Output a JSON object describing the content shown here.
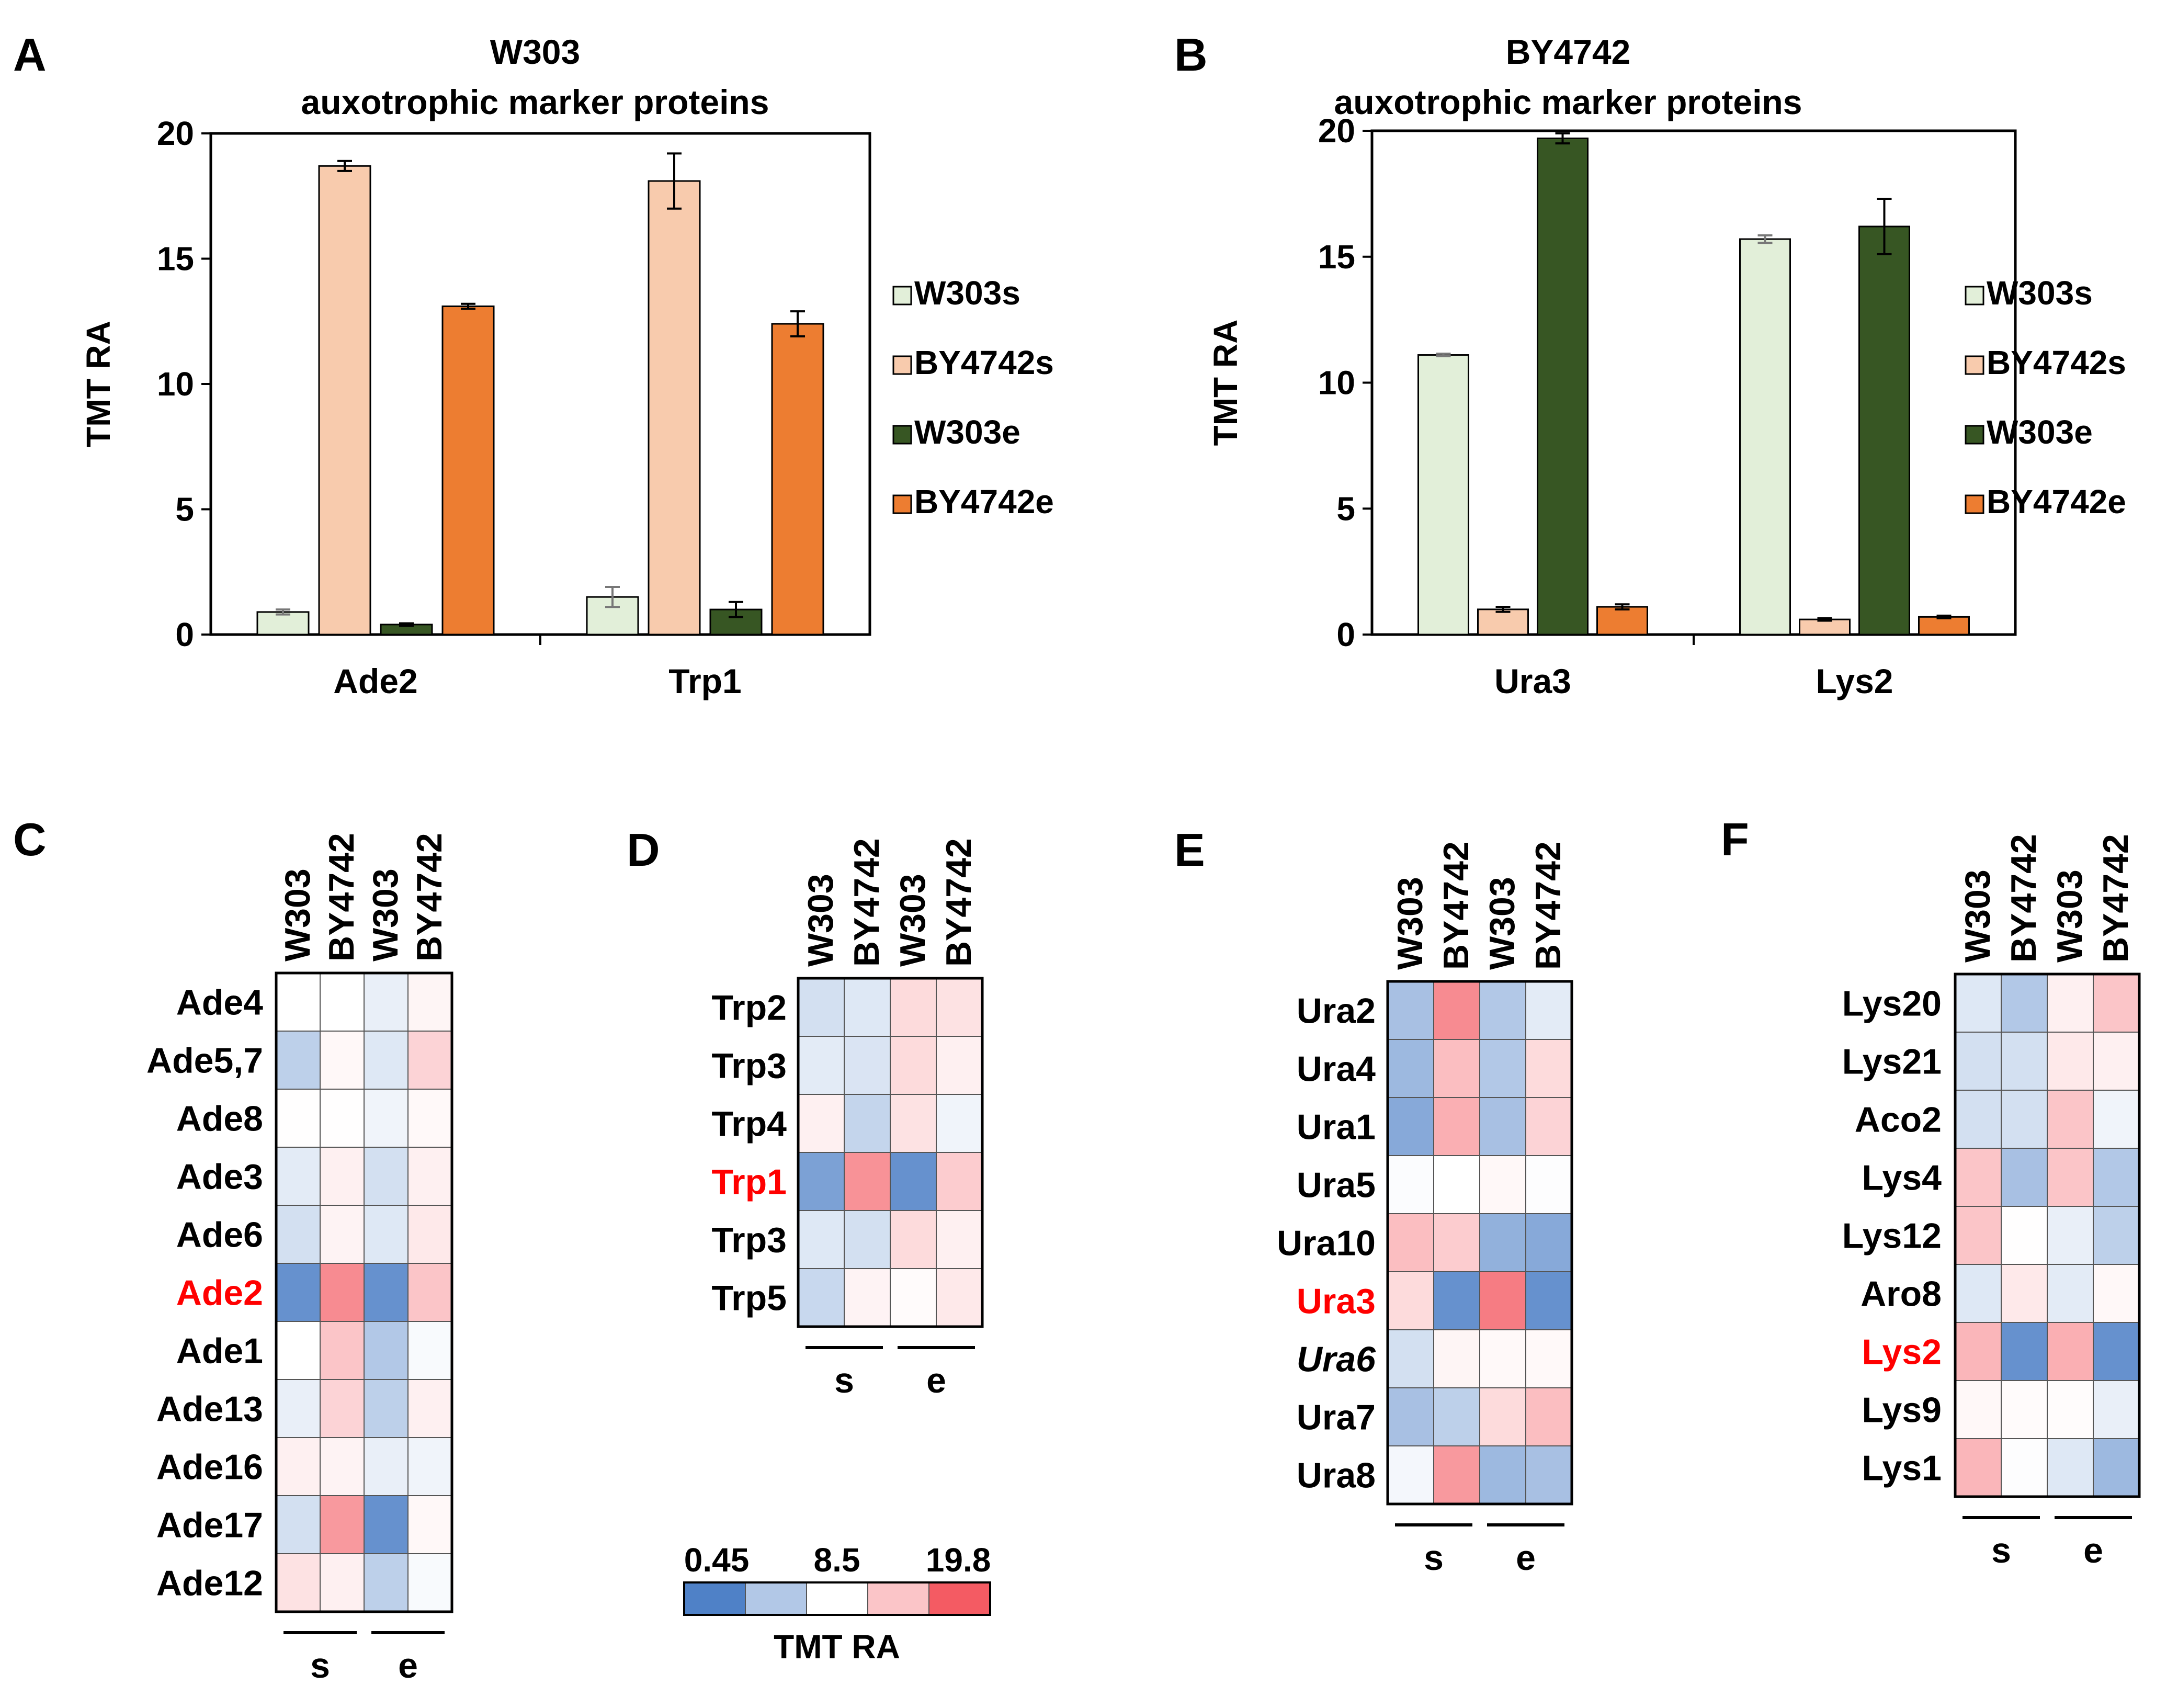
{
  "panel_letters": [
    "A",
    "B",
    "C",
    "D",
    "E",
    "F"
  ],
  "legend_items": [
    "W303s",
    "BY4742s",
    "W303e",
    "BY4742e"
  ],
  "colors": {
    "W303s": "#e2efd9",
    "BY4742s": "#f8cbad",
    "W303e": "#375623",
    "BY4742e": "#ed7d31",
    "heat_low": "#4f81c7",
    "heat_mid": "#ffffff",
    "heat_high": "#f45b63"
  },
  "chart_data": [
    {
      "id": "A",
      "type": "bar",
      "title": "W303",
      "subtitle": "auxotrophic marker proteins",
      "xlabel": "",
      "ylabel": "TMT RA",
      "ylim": [
        0,
        20
      ],
      "yticks": [
        0,
        5,
        10,
        15,
        20
      ],
      "categories": [
        "Ade2",
        "Trp1"
      ],
      "series": [
        {
          "name": "W303s",
          "values": [
            0.9,
            1.5
          ],
          "errors": [
            0.1,
            0.4
          ]
        },
        {
          "name": "BY4742s",
          "values": [
            18.7,
            18.1
          ],
          "errors": [
            0.2,
            1.1
          ]
        },
        {
          "name": "W303e",
          "values": [
            0.4,
            1.0
          ],
          "errors": [
            0.05,
            0.3
          ]
        },
        {
          "name": "BY4742e",
          "values": [
            13.1,
            12.4
          ],
          "errors": [
            0.1,
            0.5
          ]
        }
      ]
    },
    {
      "id": "B",
      "type": "bar",
      "title": "BY4742",
      "subtitle": "auxotrophic marker proteins",
      "xlabel": "",
      "ylabel": "TMT RA",
      "ylim": [
        0,
        20
      ],
      "yticks": [
        0,
        5,
        10,
        15,
        20
      ],
      "categories": [
        "Ura3",
        "Lys2"
      ],
      "series": [
        {
          "name": "W303s",
          "values": [
            11.1,
            15.7
          ],
          "errors": [
            0.05,
            0.15
          ]
        },
        {
          "name": "BY4742s",
          "values": [
            1.0,
            0.6
          ],
          "errors": [
            0.1,
            0.05
          ]
        },
        {
          "name": "W303e",
          "values": [
            19.7,
            16.2
          ],
          "errors": [
            0.2,
            1.1
          ]
        },
        {
          "name": "BY4742e",
          "values": [
            1.1,
            0.7
          ],
          "errors": [
            0.1,
            0.05
          ]
        }
      ]
    },
    {
      "id": "C",
      "type": "heatmap",
      "columns": [
        "W303",
        "BY4742",
        "W303",
        "BY4742"
      ],
      "groups": [
        "s",
        "e"
      ],
      "rows": [
        "Ade4",
        "Ade5,7",
        "Ade8",
        "Ade3",
        "Ade6",
        "Ade2",
        "Ade1",
        "Ade13",
        "Ade16",
        "Ade17",
        "Ade12"
      ],
      "highlight_row": "Ade2",
      "italic_row": "",
      "values": [
        [
          8.5,
          8.5,
          7.5,
          9.2
        ],
        [
          5.5,
          9.0,
          7.0,
          11.5
        ],
        [
          8.6,
          8.6,
          7.8,
          8.9
        ],
        [
          7.2,
          9.5,
          6.5,
          9.5
        ],
        [
          6.5,
          9.3,
          7.0,
          10.0
        ],
        [
          1.5,
          16.5,
          1.5,
          12.5
        ],
        [
          8.5,
          12.5,
          5.0,
          8.2
        ],
        [
          7.5,
          11.5,
          5.5,
          9.5
        ],
        [
          9.5,
          9.3,
          7.5,
          7.8
        ],
        [
          6.5,
          15.5,
          1.5,
          9.0
        ],
        [
          10.5,
          9.5,
          5.5,
          8.2
        ]
      ]
    },
    {
      "id": "D",
      "type": "heatmap",
      "columns": [
        "W303",
        "BY4742",
        "W303",
        "BY4742"
      ],
      "groups": [
        "s",
        "e"
      ],
      "rows": [
        "Trp2",
        "Trp3",
        "Trp4",
        "Trp1",
        "Trp3",
        "Trp5"
      ],
      "highlight_row": "Trp1",
      "italic_row": "",
      "values": [
        [
          6.5,
          7.0,
          11.0,
          10.5
        ],
        [
          7.2,
          6.8,
          11.0,
          9.5
        ],
        [
          9.5,
          5.8,
          10.5,
          7.8
        ],
        [
          2.5,
          16.0,
          1.5,
          12.0
        ],
        [
          7.0,
          6.5,
          11.0,
          9.5
        ],
        [
          6.0,
          9.3,
          8.8,
          10.0
        ]
      ]
    },
    {
      "id": "E",
      "type": "heatmap",
      "columns": [
        "W303",
        "BY4742",
        "W303",
        "BY4742"
      ],
      "groups": [
        "s",
        "e"
      ],
      "rows": [
        "Ura2",
        "Ura4",
        "Ura1",
        "Ura5",
        "Ura10",
        "Ura3",
        "Ura6",
        "Ura7",
        "Ura8"
      ],
      "highlight_row": "Ura3",
      "italic_row": "Ura6",
      "values": [
        [
          4.5,
          16.5,
          5.0,
          7.2
        ],
        [
          4.0,
          13.0,
          5.0,
          11.0
        ],
        [
          3.0,
          14.0,
          4.5,
          11.5
        ],
        [
          8.3,
          8.5,
          9.0,
          8.4
        ],
        [
          13.0,
          12.0,
          3.5,
          3.0
        ],
        [
          11.0,
          1.5,
          17.5,
          1.5
        ],
        [
          6.5,
          9.2,
          8.9,
          8.9
        ],
        [
          4.5,
          5.5,
          11.0,
          13.0
        ],
        [
          8.0,
          15.5,
          4.0,
          4.5
        ]
      ]
    },
    {
      "id": "F",
      "type": "heatmap",
      "columns": [
        "W303",
        "BY4742",
        "W303",
        "BY4742"
      ],
      "groups": [
        "s",
        "e"
      ],
      "rows": [
        "Lys20",
        "Lys21",
        "Aco2",
        "Lys4",
        "Lys12",
        "Aro8",
        "Lys2",
        "Lys9",
        "Lys1"
      ],
      "highlight_row": "Lys2",
      "italic_row": "",
      "values": [
        [
          7.0,
          5.0,
          9.5,
          12.5
        ],
        [
          6.5,
          6.5,
          10.0,
          9.5
        ],
        [
          6.5,
          6.5,
          12.5,
          7.8
        ],
        [
          12.5,
          4.5,
          12.5,
          5.0
        ],
        [
          12.5,
          8.6,
          7.5,
          5.5
        ],
        [
          7.0,
          10.0,
          7.2,
          9.0
        ],
        [
          13.5,
          1.5,
          14.0,
          1.5
        ],
        [
          9.0,
          8.8,
          8.7,
          7.5
        ],
        [
          13.5,
          8.4,
          7.0,
          4.0
        ]
      ]
    }
  ],
  "scale": {
    "min_label": "0.45",
    "mid_label": "8.5",
    "max_label": "19.8",
    "min": 0.45,
    "mid": 8.5,
    "max": 19.8,
    "steps": [
      0.45,
      5.0,
      8.5,
      12.5,
      19.8
    ],
    "title": "TMT RA"
  }
}
